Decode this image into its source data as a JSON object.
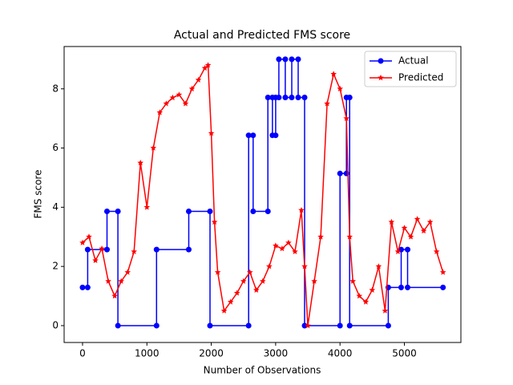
{
  "chart_data": {
    "type": "line",
    "title": "Actual and Predicted FMS score",
    "x_label": "Number of Observations",
    "y_label": "FMS score",
    "xlim": [
      -286,
      5878
    ],
    "ylim": [
      -0.57,
      9.43
    ],
    "xticks": [
      0,
      1000,
      2000,
      3000,
      4000,
      5000
    ],
    "yticks": [
      0,
      2,
      4,
      6,
      8
    ],
    "legend": "upper right",
    "series": [
      {
        "name": "Actual",
        "color": "#0000ff",
        "marker": "circle",
        "x": [
          0,
          80,
          80,
          380,
          380,
          550,
          550,
          1150,
          1150,
          1650,
          1650,
          1980,
          1980,
          2580,
          2580,
          2650,
          2650,
          2880,
          2880,
          2950,
          2950,
          3000,
          3000,
          3050,
          3050,
          3150,
          3150,
          3250,
          3250,
          3350,
          3350,
          3450,
          3450,
          4000,
          4000,
          4100,
          4100,
          4150,
          4150,
          4750,
          4750,
          4950,
          4950,
          5050,
          5050,
          5600
        ],
        "values": [
          1.29,
          1.29,
          2.57,
          2.57,
          3.86,
          3.86,
          0,
          0,
          2.57,
          2.57,
          3.86,
          3.86,
          0,
          0,
          6.43,
          6.43,
          3.86,
          3.86,
          7.71,
          7.71,
          6.43,
          6.43,
          7.71,
          7.71,
          9.0,
          9.0,
          7.71,
          7.71,
          9.0,
          9.0,
          7.71,
          7.71,
          0,
          0,
          5.14,
          5.14,
          7.71,
          7.71,
          0,
          0,
          1.29,
          1.29,
          2.57,
          2.57,
          1.29,
          1.29
        ]
      },
      {
        "name": "Predicted",
        "color": "#ff0000",
        "marker": "star",
        "x": [
          0,
          100,
          200,
          300,
          400,
          500,
          600,
          700,
          800,
          900,
          1000,
          1100,
          1200,
          1300,
          1400,
          1500,
          1600,
          1700,
          1800,
          1900,
          1950,
          2000,
          2050,
          2100,
          2200,
          2300,
          2400,
          2500,
          2600,
          2700,
          2800,
          2900,
          3000,
          3100,
          3200,
          3300,
          3400,
          3450,
          3500,
          3600,
          3700,
          3800,
          3900,
          4000,
          4100,
          4150,
          4200,
          4300,
          4400,
          4500,
          4600,
          4700,
          4800,
          4900,
          5000,
          5100,
          5200,
          5300,
          5400,
          5500,
          5600
        ],
        "values": [
          2.8,
          3.0,
          2.2,
          2.6,
          1.5,
          1.0,
          1.5,
          1.8,
          2.5,
          5.5,
          4.0,
          6.0,
          7.2,
          7.5,
          7.7,
          7.8,
          7.5,
          8.0,
          8.3,
          8.7,
          8.8,
          6.5,
          3.5,
          1.8,
          0.5,
          0.8,
          1.1,
          1.5,
          1.8,
          1.2,
          1.5,
          2.0,
          2.7,
          2.6,
          2.8,
          2.5,
          3.9,
          2.0,
          0.0,
          1.5,
          3.0,
          7.5,
          8.5,
          8.0,
          7.0,
          3.0,
          1.5,
          1.0,
          0.8,
          1.2,
          2.0,
          0.5,
          3.5,
          2.5,
          3.3,
          3.0,
          3.6,
          3.2,
          3.5,
          2.5,
          1.8
        ]
      }
    ]
  }
}
